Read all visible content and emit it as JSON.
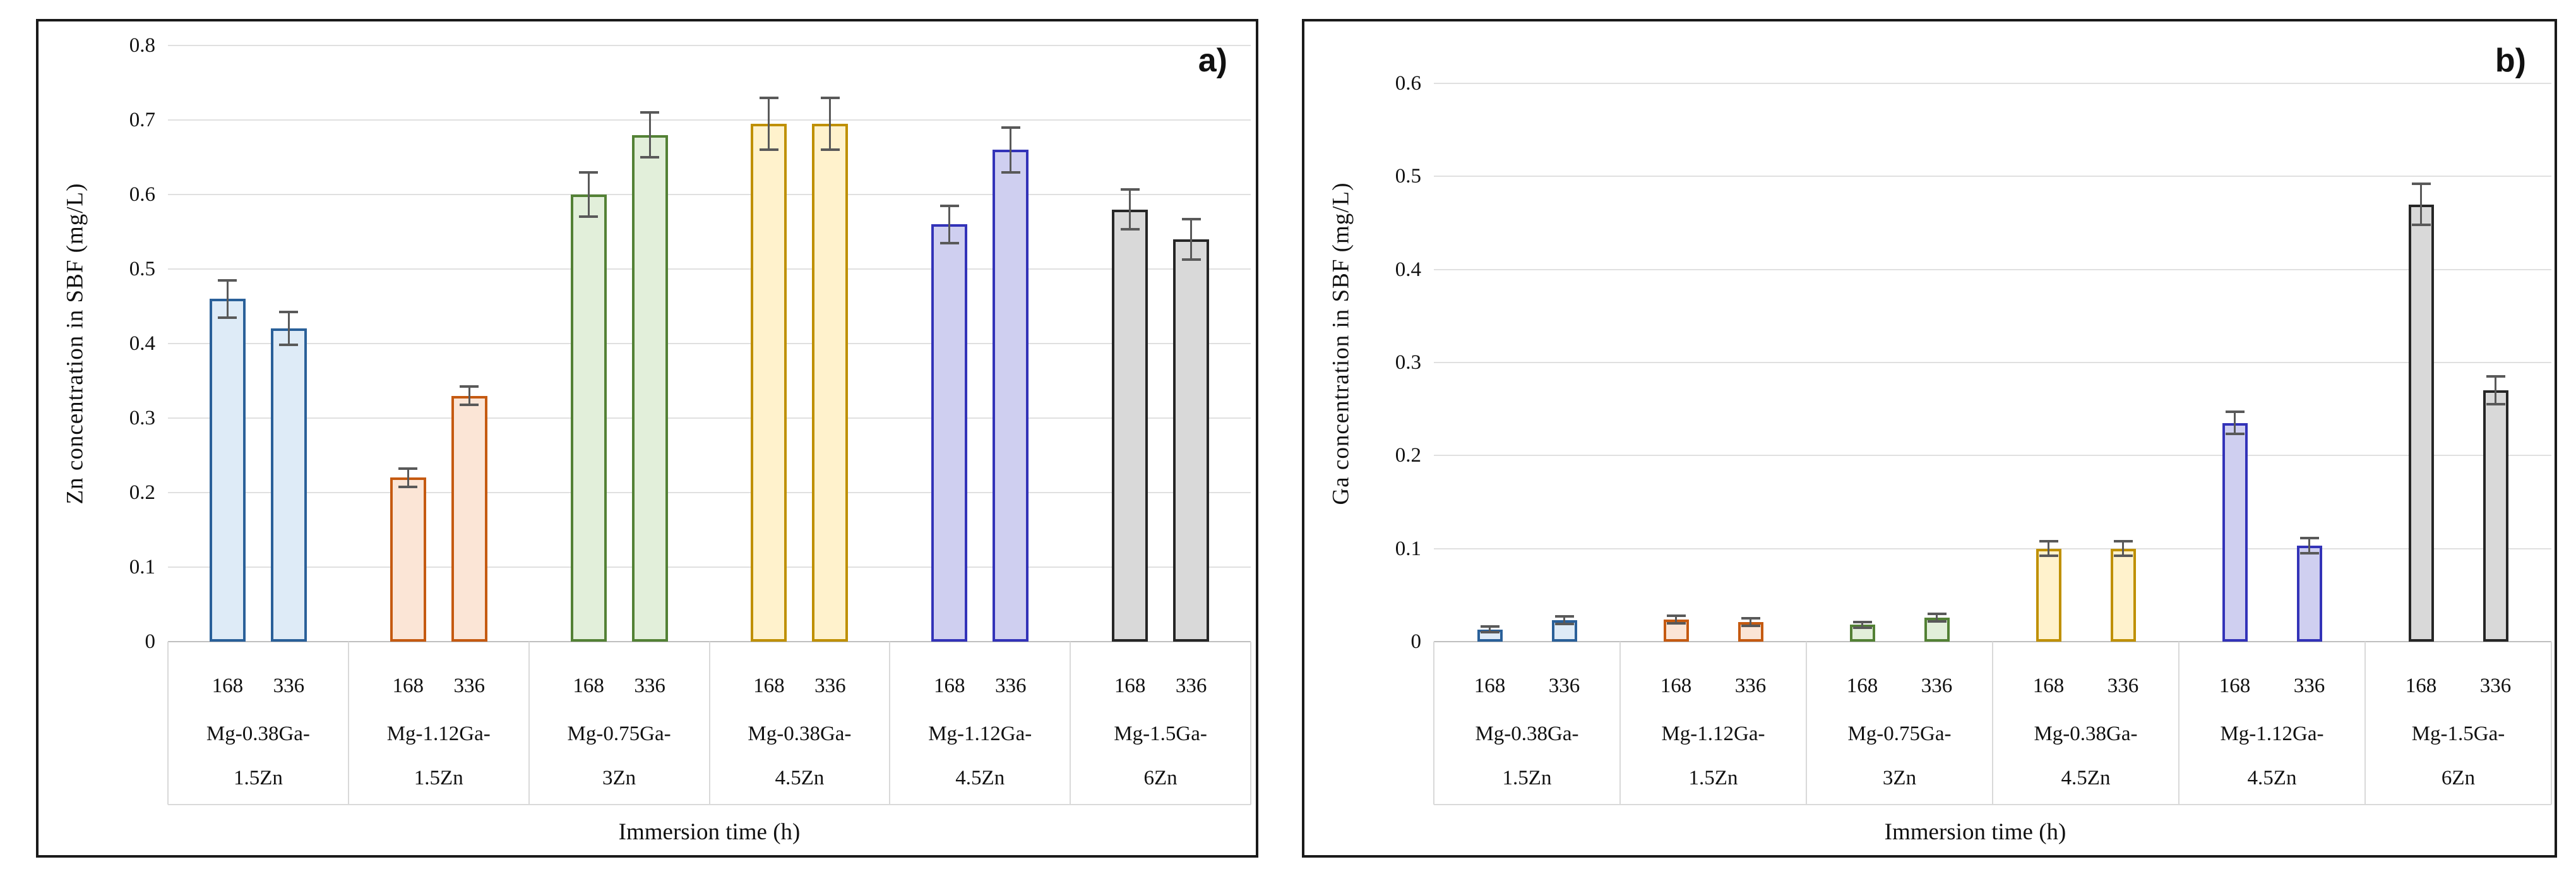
{
  "figure": {
    "background": "#FFFFFF",
    "panel_border_color": "#1A1A1A",
    "gridline_color": "#E0E0E0",
    "axis_line_color": "#BFBFBF",
    "table_line_color": "#D9D9D9",
    "error_bar_color": "#595959"
  },
  "palette": {
    "blue": {
      "fill": "#DEEBF7",
      "border": "#2A6099"
    },
    "orange": {
      "fill": "#FBE5D6",
      "border": "#C55A11"
    },
    "green": {
      "fill": "#E2EFDA",
      "border": "#538135"
    },
    "yellow": {
      "fill": "#FFF2CC",
      "border": "#BF9000"
    },
    "violet": {
      "fill": "#CFCFF0",
      "border": "#3333B8"
    },
    "gray": {
      "fill": "#D9D9D9",
      "border": "#262626"
    }
  },
  "chart_data": [
    {
      "type": "bar",
      "panel_label": "a)",
      "ylabel": "Zn concentration in SBF (mg/L)",
      "xlabel": "Immersion time (h)",
      "ylim": [
        0,
        0.8
      ],
      "y_tick_step": 0.1,
      "y_tick_labels": [
        "0.8",
        "0.7",
        "0.6",
        "0.5",
        "0.4",
        "0.3",
        "0.2",
        "0.1",
        "0"
      ],
      "grid": true,
      "legend": "none",
      "x_ticks": [
        "168",
        "336"
      ],
      "groups": [
        {
          "category": "Mg-0.38Ga-1.5Zn",
          "label_lines": [
            "Mg-0.38Ga-",
            "1.5Zn"
          ],
          "color": "blue",
          "values": [
            0.46,
            0.42
          ],
          "errors": [
            0.025,
            0.022
          ]
        },
        {
          "category": "Mg-1.12Ga-1.5Zn",
          "label_lines": [
            "Mg-1.12Ga-",
            "1.5Zn"
          ],
          "color": "orange",
          "values": [
            0.22,
            0.33
          ],
          "errors": [
            0.012,
            0.012
          ]
        },
        {
          "category": "Mg-0.75Ga-3Zn",
          "label_lines": [
            "Mg-0.75Ga-",
            "3Zn"
          ],
          "color": "green",
          "values": [
            0.6,
            0.68
          ],
          "errors": [
            0.03,
            0.03
          ]
        },
        {
          "category": "Mg-0.38Ga-4.5Zn",
          "label_lines": [
            "Mg-0.38Ga-",
            "4.5Zn"
          ],
          "color": "yellow",
          "values": [
            0.695,
            0.695
          ],
          "errors": [
            0.035,
            0.035
          ]
        },
        {
          "category": "Mg-1.12Ga-4.5Zn",
          "label_lines": [
            "Mg-1.12Ga-",
            "4.5Zn"
          ],
          "color": "violet",
          "values": [
            0.56,
            0.66
          ],
          "errors": [
            0.025,
            0.03
          ]
        },
        {
          "category": "Mg-1.5Ga-6Zn",
          "label_lines": [
            "Mg-1.5Ga-",
            "6Zn"
          ],
          "color": "gray",
          "values": [
            0.58,
            0.54
          ],
          "errors": [
            0.027,
            0.027
          ]
        }
      ]
    },
    {
      "type": "bar",
      "panel_label": "b)",
      "ylabel": "Ga concentration in SBF (mg/L)",
      "xlabel": "Immersion time (h)",
      "ylim": [
        0,
        0.6
      ],
      "y_tick_step": 0.1,
      "y_tick_labels": [
        "0.6",
        "0.5",
        "0.4",
        "0.3",
        "0.2",
        "0.1",
        "0"
      ],
      "grid": true,
      "legend": "none",
      "x_ticks": [
        "168",
        "336"
      ],
      "groups": [
        {
          "category": "Mg-0.38Ga-1.5Zn",
          "label_lines": [
            "Mg-0.38Ga-",
            "1.5Zn"
          ],
          "color": "blue",
          "values": [
            0.013,
            0.023
          ],
          "errors": [
            0.003,
            0.004
          ]
        },
        {
          "category": "Mg-1.12Ga-1.5Zn",
          "label_lines": [
            "Mg-1.12Ga-",
            "1.5Zn"
          ],
          "color": "orange",
          "values": [
            0.024,
            0.021
          ],
          "errors": [
            0.004,
            0.004
          ]
        },
        {
          "category": "Mg-0.75Ga-3Zn",
          "label_lines": [
            "Mg-0.75Ga-",
            "3Zn"
          ],
          "color": "green",
          "values": [
            0.018,
            0.026
          ],
          "errors": [
            0.003,
            0.004
          ]
        },
        {
          "category": "Mg-0.38Ga-4.5Zn",
          "label_lines": [
            "Mg-0.38Ga-",
            "4.5Zn"
          ],
          "color": "yellow",
          "values": [
            0.1,
            0.1
          ],
          "errors": [
            0.008,
            0.008
          ]
        },
        {
          "category": "Mg-1.12Ga-4.5Zn",
          "label_lines": [
            "Mg-1.12Ga-",
            "4.5Zn"
          ],
          "color": "violet",
          "values": [
            0.235,
            0.103
          ],
          "errors": [
            0.012,
            0.008
          ]
        },
        {
          "category": "Mg-1.5Ga-6Zn",
          "label_lines": [
            "Mg-1.5Ga-",
            "6Zn"
          ],
          "color": "gray",
          "values": [
            0.47,
            0.27
          ],
          "errors": [
            0.022,
            0.015
          ]
        }
      ]
    }
  ]
}
